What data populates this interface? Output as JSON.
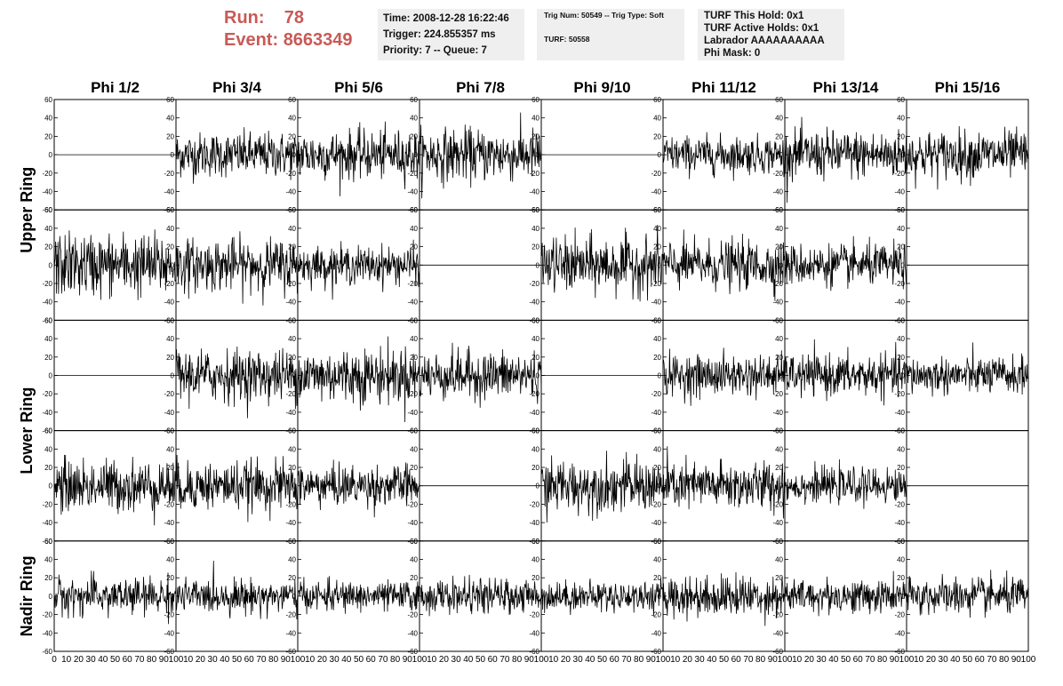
{
  "header": {
    "run_label": "Run:",
    "run_value": "78",
    "event_label": "Event:",
    "event_value": "8663349",
    "time_box": [
      "Time: 2008-12-28 16:22:46",
      "Trigger: 224.855357 ms",
      "Priority: 7 -- Queue: 7"
    ],
    "trig_box": [
      "Trig Num: 50549 -- Trig Type: Soft",
      "TURF: 50558"
    ],
    "turf_box": [
      "TURF This Hold: 0x1",
      "TURF Active Holds: 0x1",
      "Labrador AAAAAAAAAA",
      "Phi Mask: 0"
    ],
    "accent_color": "#c85a56",
    "box_color": "#efefef"
  },
  "chart_data": {
    "type": "line",
    "column_titles": [
      "Phi 1/2",
      "Phi 3/4",
      "Phi 5/6",
      "Phi 7/8",
      "Phi 9/10",
      "Phi 11/12",
      "Phi 13/14",
      "Phi 15/16"
    ],
    "ring_labels": [
      "Upper Ring",
      "Lower Ring",
      "Nadir Ring"
    ],
    "ring_row_spans": [
      [
        0,
        1
      ],
      [
        2,
        3
      ],
      [
        4,
        4
      ]
    ],
    "xlim": [
      0,
      100
    ],
    "ylim": [
      -60,
      60
    ],
    "x_tick_labels": [
      "0",
      "10",
      "20",
      "30",
      "40",
      "50",
      "60",
      "70",
      "80",
      "90",
      "100"
    ],
    "y_tick_labels": [
      "-60",
      "-40",
      "-20",
      "0",
      "20",
      "40",
      "60"
    ],
    "grid": false,
    "channel_rows": [
      [
        {
          "amp": 0
        },
        {
          "amp": 12
        },
        {
          "amp": 13
        },
        {
          "amp": 14
        },
        {
          "amp": 0
        },
        {
          "amp": 10
        },
        {
          "amp": 13
        },
        {
          "amp": 13
        }
      ],
      [
        {
          "amp": 17
        },
        {
          "amp": 14
        },
        {
          "amp": 10
        },
        {
          "amp": 0
        },
        {
          "amp": 15
        },
        {
          "amp": 13
        },
        {
          "amp": 11
        },
        {
          "amp": 0
        }
      ],
      [
        {
          "amp": 0
        },
        {
          "amp": 14
        },
        {
          "amp": 15
        },
        {
          "amp": 13
        },
        {
          "amp": 0
        },
        {
          "amp": 11
        },
        {
          "amp": 11
        },
        {
          "amp": 10
        }
      ],
      [
        {
          "amp": 14
        },
        {
          "amp": 13
        },
        {
          "amp": 11
        },
        {
          "amp": 0
        },
        {
          "amp": 14
        },
        {
          "amp": 13
        },
        {
          "amp": 9
        },
        {
          "amp": 0
        }
      ],
      [
        {
          "amp": 10
        },
        {
          "amp": 9
        },
        {
          "amp": 8
        },
        {
          "amp": 9
        },
        {
          "amp": 8
        },
        {
          "amp": 11
        },
        {
          "amp": 9
        },
        {
          "amp": 10
        }
      ]
    ]
  }
}
